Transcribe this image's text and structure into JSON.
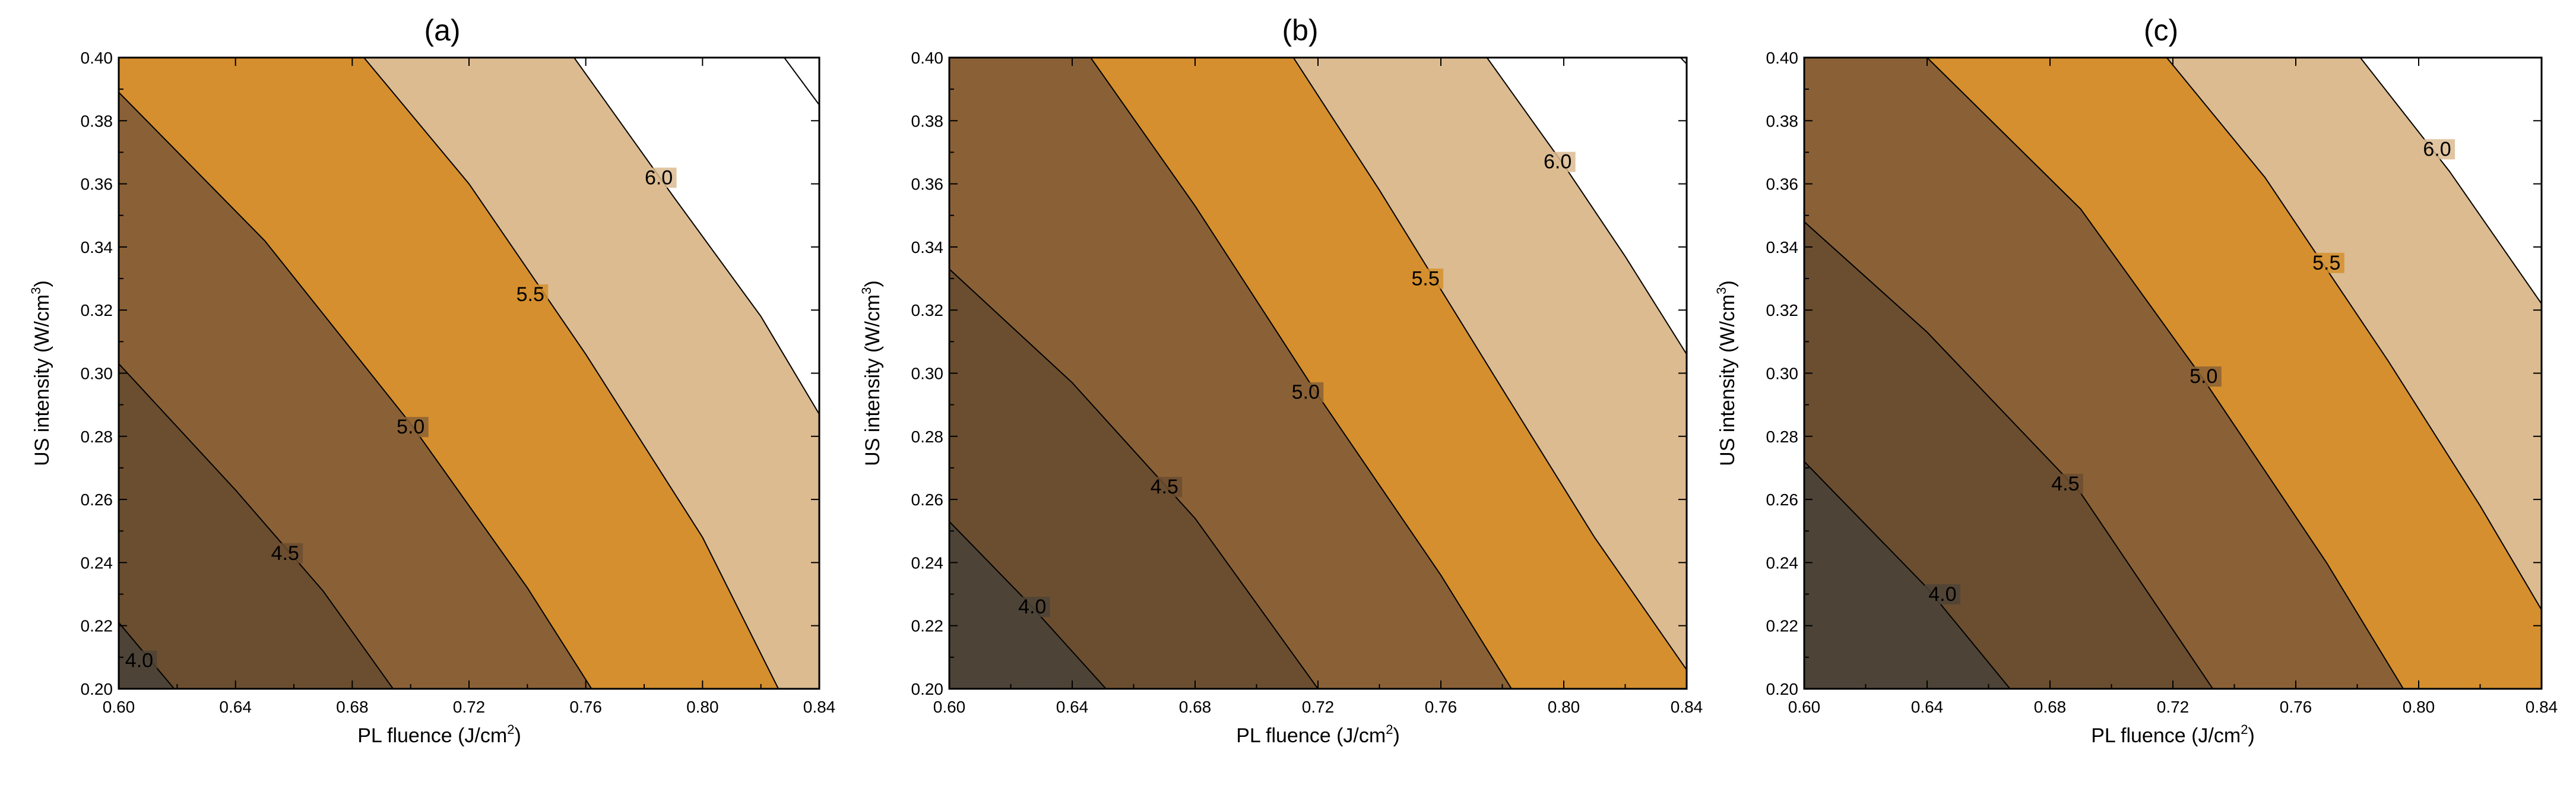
{
  "chart_data": [
    {
      "type": "contour",
      "title": "(a)",
      "xlabel": "PL fluence (J/cm",
      "xlabel_sup": "2",
      "xlabel_end": ")",
      "ylabel": "US intensity (W/cm",
      "ylabel_sup": "3",
      "ylabel_end": ")",
      "xlim": [
        0.6,
        0.84
      ],
      "ylim": [
        0.2,
        0.4
      ],
      "x_ticks": [
        "0.60",
        "0.64",
        "0.68",
        "0.72",
        "0.76",
        "0.80",
        "0.84"
      ],
      "y_ticks": [
        "0.20",
        "0.22",
        "0.24",
        "0.26",
        "0.28",
        "0.30",
        "0.32",
        "0.34",
        "0.36",
        "0.38",
        "0.40"
      ],
      "levels": [
        {
          "value": 4.0,
          "label": "4.0",
          "label_at": [
            0.607,
            0.208
          ],
          "line": [
            [
              0.6,
              0.221
            ],
            [
              0.619,
              0.2
            ]
          ]
        },
        {
          "value": 4.5,
          "label": "4.5",
          "label_at": [
            0.657,
            0.242
          ],
          "line": [
            [
              0.6,
              0.303
            ],
            [
              0.64,
              0.263
            ],
            [
              0.67,
              0.231
            ],
            [
              0.694,
              0.2
            ]
          ]
        },
        {
          "value": 5.0,
          "label": "5.0",
          "label_at": [
            0.7,
            0.282
          ],
          "line": [
            [
              0.6,
              0.389
            ],
            [
              0.65,
              0.342
            ],
            [
              0.7,
              0.284
            ],
            [
              0.74,
              0.232
            ],
            [
              0.762,
              0.2
            ]
          ]
        },
        {
          "value": 5.5,
          "label": "5.5",
          "label_at": [
            0.741,
            0.324
          ],
          "line": [
            [
              0.684,
              0.4
            ],
            [
              0.72,
              0.36
            ],
            [
              0.76,
              0.306
            ],
            [
              0.8,
              0.248
            ],
            [
              0.826,
              0.2
            ]
          ]
        },
        {
          "value": 6.0,
          "label": "6.0",
          "label_at": [
            0.785,
            0.361
          ],
          "line": [
            [
              0.756,
              0.4
            ],
            [
              0.79,
              0.356
            ],
            [
              0.82,
              0.318
            ],
            [
              0.84,
              0.287
            ]
          ]
        },
        {
          "value": 6.5,
          "label": "",
          "label_at": null,
          "line": [
            [
              0.828,
              0.4
            ],
            [
              0.84,
              0.385
            ]
          ]
        }
      ],
      "fill_colors": [
        "#4d4437",
        "#6b4e30",
        "#8a6136",
        "#d58f2e",
        "#dcbb90",
        "#ffffff"
      ]
    },
    {
      "type": "contour",
      "title": "(b)",
      "xlabel": "PL fluence (J/cm",
      "xlabel_sup": "2",
      "xlabel_end": ")",
      "ylabel": "US intensity (W/cm",
      "ylabel_sup": "3",
      "ylabel_end": ")",
      "xlim": [
        0.6,
        0.84
      ],
      "ylim": [
        0.2,
        0.4
      ],
      "x_ticks": [
        "0.60",
        "0.64",
        "0.68",
        "0.72",
        "0.76",
        "0.80",
        "0.84"
      ],
      "y_ticks": [
        "0.20",
        "0.22",
        "0.24",
        "0.26",
        "0.28",
        "0.30",
        "0.32",
        "0.34",
        "0.36",
        "0.38",
        "0.40"
      ],
      "levels": [
        {
          "value": 4.0,
          "label": "4.0",
          "label_at": [
            0.627,
            0.225
          ],
          "line": [
            [
              0.6,
              0.253
            ],
            [
              0.625,
              0.228
            ],
            [
              0.651,
              0.2
            ]
          ]
        },
        {
          "value": 4.5,
          "label": "4.5",
          "label_at": [
            0.67,
            0.263
          ],
          "line": [
            [
              0.6,
              0.333
            ],
            [
              0.64,
              0.297
            ],
            [
              0.68,
              0.254
            ],
            [
              0.72,
              0.2
            ]
          ]
        },
        {
          "value": 5.0,
          "label": "5.0",
          "label_at": [
            0.716,
            0.293
          ],
          "line": [
            [
              0.646,
              0.4
            ],
            [
              0.68,
              0.353
            ],
            [
              0.72,
              0.293
            ],
            [
              0.76,
              0.236
            ],
            [
              0.783,
              0.2
            ]
          ]
        },
        {
          "value": 5.5,
          "label": "5.5",
          "label_at": [
            0.755,
            0.329
          ],
          "line": [
            [
              0.712,
              0.4
            ],
            [
              0.74,
              0.358
            ],
            [
              0.78,
              0.295
            ],
            [
              0.81,
              0.248
            ],
            [
              0.84,
              0.206
            ]
          ]
        },
        {
          "value": 6.0,
          "label": "6.0",
          "label_at": [
            0.798,
            0.366
          ],
          "line": [
            [
              0.775,
              0.4
            ],
            [
              0.8,
              0.366
            ],
            [
              0.82,
              0.337
            ],
            [
              0.84,
              0.306
            ]
          ]
        },
        {
          "value": 6.5,
          "label": "",
          "label_at": null,
          "line": [
            [
              0.838,
              0.4
            ],
            [
              0.84,
              0.398
            ]
          ]
        }
      ],
      "fill_colors": [
        "#4d4437",
        "#6b4e30",
        "#8a6136",
        "#d58f2e",
        "#dcbb90",
        "#ffffff"
      ]
    },
    {
      "type": "contour",
      "title": "(c)",
      "xlabel": "PL fluence (J/cm",
      "xlabel_sup": "2",
      "xlabel_end": ")",
      "ylabel": "US intensity (W/cm",
      "ylabel_sup": "3",
      "ylabel_end": ")",
      "xlim": [
        0.6,
        0.84
      ],
      "ylim": [
        0.2,
        0.4
      ],
      "x_ticks": [
        "0.60",
        "0.64",
        "0.68",
        "0.72",
        "0.76",
        "0.80",
        "0.84"
      ],
      "y_ticks": [
        "0.20",
        "0.22",
        "0.24",
        "0.26",
        "0.28",
        "0.30",
        "0.32",
        "0.34",
        "0.36",
        "0.38",
        "0.40"
      ],
      "levels": [
        {
          "value": 4.0,
          "label": "4.0",
          "label_at": [
            0.645,
            0.229
          ],
          "line": [
            [
              0.6,
              0.272
            ],
            [
              0.64,
              0.232
            ],
            [
              0.667,
              0.2
            ]
          ]
        },
        {
          "value": 4.5,
          "label": "4.5",
          "label_at": [
            0.685,
            0.264
          ],
          "line": [
            [
              0.6,
              0.348
            ],
            [
              0.64,
              0.313
            ],
            [
              0.69,
              0.262
            ],
            [
              0.733,
              0.2
            ]
          ]
        },
        {
          "value": 5.0,
          "label": "5.0",
          "label_at": [
            0.73,
            0.298
          ],
          "line": [
            [
              0.64,
              0.4
            ],
            [
              0.69,
              0.352
            ],
            [
              0.73,
              0.298
            ],
            [
              0.77,
              0.24
            ],
            [
              0.795,
              0.2
            ]
          ]
        },
        {
          "value": 5.5,
          "label": "5.5",
          "label_at": [
            0.77,
            0.334
          ],
          "line": [
            [
              0.718,
              0.4
            ],
            [
              0.75,
              0.362
            ],
            [
              0.79,
              0.304
            ],
            [
              0.82,
              0.258
            ],
            [
              0.84,
              0.225
            ]
          ]
        },
        {
          "value": 6.0,
          "label": "6.0",
          "label_at": [
            0.806,
            0.37
          ],
          "line": [
            [
              0.781,
              0.4
            ],
            [
              0.81,
              0.364
            ],
            [
              0.83,
              0.336
            ],
            [
              0.84,
              0.322
            ]
          ]
        }
      ],
      "fill_colors": [
        "#4d4437",
        "#6b4e30",
        "#8a6136",
        "#d58f2e",
        "#dcbb90"
      ]
    }
  ]
}
